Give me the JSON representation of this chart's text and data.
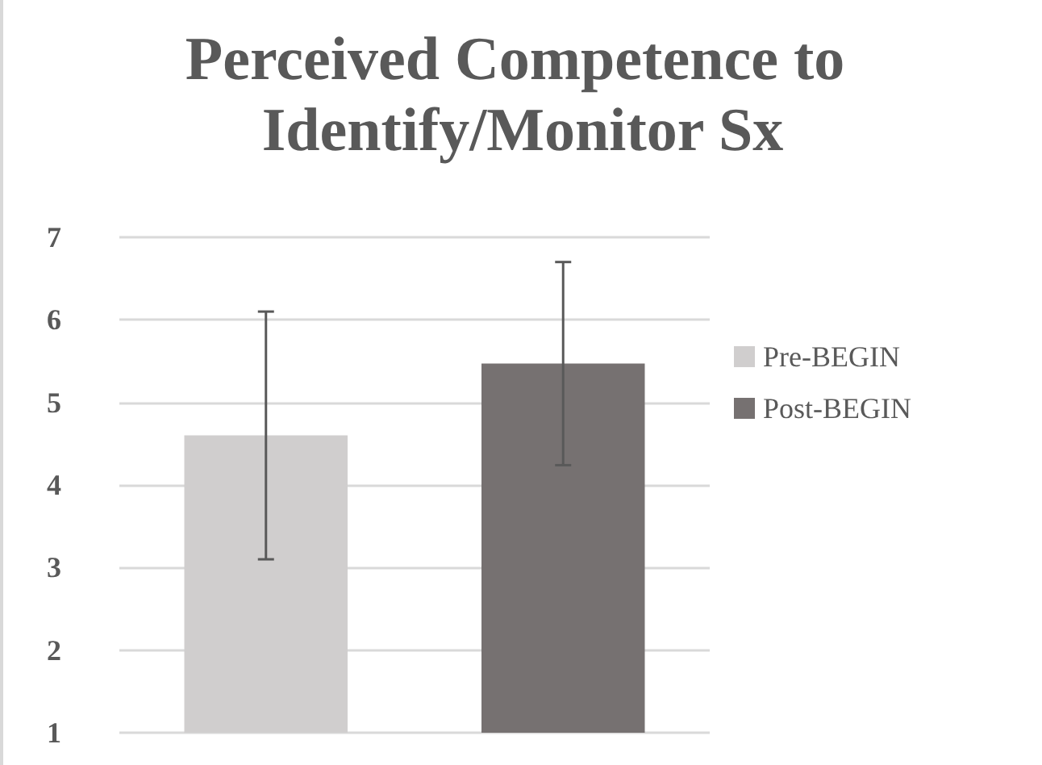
{
  "chart_data": {
    "type": "bar",
    "title": "Perceived Competence to Identify/Monitor Sx",
    "categories": [
      null
    ],
    "series": [
      {
        "name": "Pre-BEGIN",
        "color": "#d0cece",
        "values": [
          4.6
        ],
        "errors": [
          1.5
        ]
      },
      {
        "name": "Post-BEGIN",
        "color": "#767171",
        "values": [
          5.47
        ],
        "errors": [
          1.23
        ]
      }
    ],
    "ylim": [
      1,
      7
    ],
    "yticks": [
      1,
      2,
      3,
      4,
      5,
      6,
      7
    ],
    "grid": "y",
    "legend": "right"
  }
}
